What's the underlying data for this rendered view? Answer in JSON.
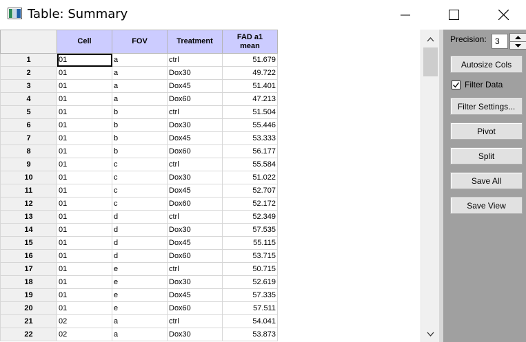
{
  "window": {
    "title": "Table: Summary",
    "minimize": "minimize",
    "maximize": "maximize",
    "close": "close"
  },
  "table": {
    "headers": [
      "Cell",
      "FOV",
      "Treatment",
      "FAD a1 mean"
    ],
    "header_lines": {
      "fad_line1": "FAD a1",
      "fad_line2": "mean"
    },
    "rows": [
      {
        "n": "1",
        "cell": "01",
        "fov": "a",
        "treatment": "ctrl",
        "value": "51.679"
      },
      {
        "n": "2",
        "cell": "01",
        "fov": "a",
        "treatment": "Dox30",
        "value": "49.722"
      },
      {
        "n": "3",
        "cell": "01",
        "fov": "a",
        "treatment": "Dox45",
        "value": "51.401"
      },
      {
        "n": "4",
        "cell": "01",
        "fov": "a",
        "treatment": "Dox60",
        "value": "47.213"
      },
      {
        "n": "5",
        "cell": "01",
        "fov": "b",
        "treatment": "ctrl",
        "value": "51.504"
      },
      {
        "n": "6",
        "cell": "01",
        "fov": "b",
        "treatment": "Dox30",
        "value": "55.446"
      },
      {
        "n": "7",
        "cell": "01",
        "fov": "b",
        "treatment": "Dox45",
        "value": "53.333"
      },
      {
        "n": "8",
        "cell": "01",
        "fov": "b",
        "treatment": "Dox60",
        "value": "56.177"
      },
      {
        "n": "9",
        "cell": "01",
        "fov": "c",
        "treatment": "ctrl",
        "value": "55.584"
      },
      {
        "n": "10",
        "cell": "01",
        "fov": "c",
        "treatment": "Dox30",
        "value": "51.022"
      },
      {
        "n": "11",
        "cell": "01",
        "fov": "c",
        "treatment": "Dox45",
        "value": "52.707"
      },
      {
        "n": "12",
        "cell": "01",
        "fov": "c",
        "treatment": "Dox60",
        "value": "52.172"
      },
      {
        "n": "13",
        "cell": "01",
        "fov": "d",
        "treatment": "ctrl",
        "value": "52.349"
      },
      {
        "n": "14",
        "cell": "01",
        "fov": "d",
        "treatment": "Dox30",
        "value": "57.535"
      },
      {
        "n": "15",
        "cell": "01",
        "fov": "d",
        "treatment": "Dox45",
        "value": "55.115"
      },
      {
        "n": "16",
        "cell": "01",
        "fov": "d",
        "treatment": "Dox60",
        "value": "53.715"
      },
      {
        "n": "17",
        "cell": "01",
        "fov": "e",
        "treatment": "ctrl",
        "value": "50.715"
      },
      {
        "n": "18",
        "cell": "01",
        "fov": "e",
        "treatment": "Dox30",
        "value": "52.619"
      },
      {
        "n": "19",
        "cell": "01",
        "fov": "e",
        "treatment": "Dox45",
        "value": "57.335"
      },
      {
        "n": "20",
        "cell": "01",
        "fov": "e",
        "treatment": "Dox60",
        "value": "57.511"
      },
      {
        "n": "21",
        "cell": "02",
        "fov": "a",
        "treatment": "ctrl",
        "value": "54.041"
      },
      {
        "n": "22",
        "cell": "02",
        "fov": "a",
        "treatment": "Dox30",
        "value": "53.873"
      }
    ]
  },
  "panel": {
    "precision_label": "Precision:",
    "precision_value": "3",
    "autosize_label": "Autosize Cols",
    "filter_data_label": "Filter Data",
    "filter_data_checked": true,
    "filter_settings_label": "Filter Settings...",
    "pivot_label": "Pivot",
    "split_label": "Split",
    "save_all_label": "Save All",
    "save_view_label": "Save View"
  },
  "colors": {
    "header_bg": "#ccccff",
    "panel_bg": "#a0a0a0",
    "rowheader_bg": "#f0f0f0"
  }
}
